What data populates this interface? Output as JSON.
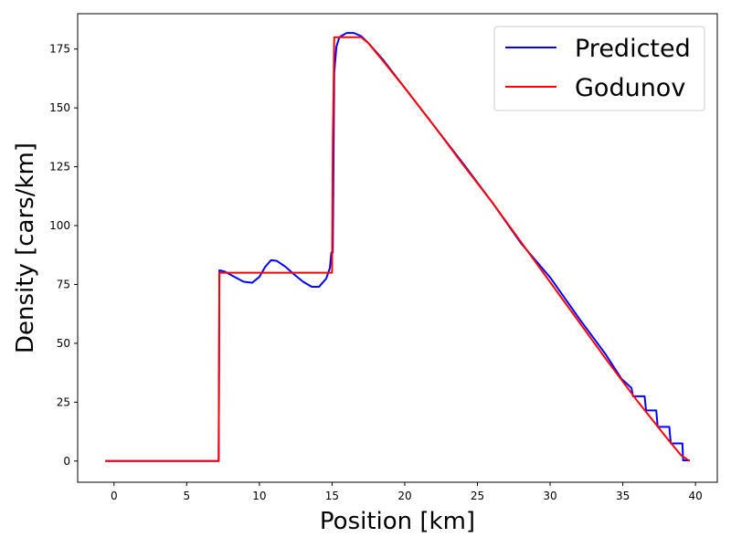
{
  "chart_data": {
    "type": "line",
    "xlabel": "Position [km]",
    "ylabel": "Density [cars/km]",
    "xlim": [
      -2.5,
      41.5
    ],
    "ylim": [
      -9,
      190
    ],
    "xticks": [
      0,
      5,
      10,
      15,
      20,
      25,
      30,
      35,
      40
    ],
    "yticks": [
      0,
      25,
      50,
      75,
      100,
      125,
      150,
      175
    ],
    "grid": false,
    "legend_position": "top-right",
    "series": [
      {
        "name": "Predicted",
        "color": "#0000ff",
        "points": [
          [
            -0.6,
            0
          ],
          [
            7.2,
            0
          ],
          [
            7.25,
            81
          ],
          [
            7.6,
            80.5
          ],
          [
            8.2,
            78.5
          ],
          [
            8.9,
            76.2
          ],
          [
            9.5,
            75.7
          ],
          [
            10.0,
            78.2
          ],
          [
            10.4,
            82.5
          ],
          [
            10.8,
            85.3
          ],
          [
            11.2,
            85.0
          ],
          [
            11.8,
            82.5
          ],
          [
            12.4,
            79.2
          ],
          [
            13.0,
            76.2
          ],
          [
            13.6,
            74.0
          ],
          [
            14.1,
            74.0
          ],
          [
            14.6,
            77.5
          ],
          [
            14.85,
            82
          ],
          [
            14.95,
            88.5
          ],
          [
            15.05,
            88.5
          ],
          [
            15.1,
            127
          ],
          [
            15.15,
            165
          ],
          [
            15.3,
            176
          ],
          [
            15.5,
            180
          ],
          [
            16.0,
            181.8
          ],
          [
            16.5,
            181.8
          ],
          [
            17.0,
            180.5
          ],
          [
            17.5,
            177.5
          ],
          [
            18.5,
            170.5
          ],
          [
            20.0,
            158.5
          ],
          [
            22.0,
            142.5
          ],
          [
            24.0,
            126.5
          ],
          [
            26.0,
            110.0
          ],
          [
            28.0,
            92.5
          ],
          [
            30.0,
            78.0
          ],
          [
            32.0,
            60.5
          ],
          [
            33.8,
            45.5
          ],
          [
            34.9,
            35.0
          ],
          [
            35.6,
            31.0
          ],
          [
            35.7,
            27.5
          ],
          [
            36.5,
            27.5
          ],
          [
            36.6,
            21.5
          ],
          [
            37.3,
            21.5
          ],
          [
            37.4,
            14.5
          ],
          [
            38.2,
            14.5
          ],
          [
            38.3,
            7.5
          ],
          [
            39.1,
            7.5
          ],
          [
            39.15,
            0.3
          ],
          [
            39.6,
            0.3
          ]
        ]
      },
      {
        "name": "Godunov",
        "color": "#ff0000",
        "points": [
          [
            -0.6,
            0
          ],
          [
            7.2,
            0
          ],
          [
            7.25,
            80
          ],
          [
            15.0,
            80
          ],
          [
            15.05,
            135
          ],
          [
            15.15,
            180
          ],
          [
            17.0,
            180
          ],
          [
            17.5,
            177.5
          ],
          [
            18.5,
            170
          ],
          [
            20.0,
            158.5
          ],
          [
            22.0,
            142.5
          ],
          [
            24.0,
            126.0
          ],
          [
            26.0,
            110.0
          ],
          [
            28.0,
            93.0
          ],
          [
            30.0,
            76.0
          ],
          [
            32.0,
            59.0
          ],
          [
            34.0,
            42.0
          ],
          [
            36.0,
            25.5
          ],
          [
            38.0,
            10.0
          ],
          [
            39.0,
            2.5
          ],
          [
            39.6,
            0
          ]
        ]
      }
    ]
  }
}
